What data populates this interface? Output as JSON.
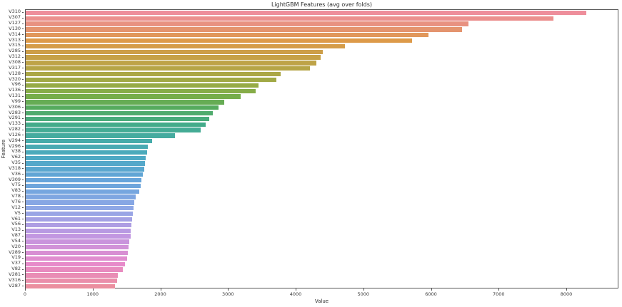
{
  "chart_data": {
    "type": "bar",
    "orientation": "horizontal",
    "title": "LightGBM Features (avg over folds)",
    "xlabel": "Value",
    "ylabel": "Feature",
    "xlim": [
      0,
      8770
    ],
    "x_ticks": [
      0,
      1000,
      2000,
      3000,
      4000,
      5000,
      6000,
      7000,
      8000
    ],
    "grid": false,
    "legend": "none",
    "categories": [
      "V310",
      "V307",
      "V127",
      "V130",
      "V314",
      "V313",
      "V315",
      "V285",
      "V312",
      "V308",
      "V317",
      "V128",
      "V320",
      "V96",
      "V136",
      "V131",
      "V99",
      "V306",
      "V283",
      "V291",
      "V133",
      "V282",
      "V126",
      "V294",
      "V296",
      "V38",
      "V62",
      "V35",
      "V318",
      "V36",
      "V309",
      "V75",
      "V83",
      "V78",
      "V76",
      "V12",
      "V5",
      "V61",
      "V56",
      "V13",
      "V87",
      "V54",
      "V20",
      "V289",
      "V19",
      "V37",
      "V82",
      "V281",
      "V316",
      "V287"
    ],
    "values": [
      8285,
      7800,
      6545,
      6450,
      5950,
      5710,
      4720,
      4395,
      4360,
      4300,
      4200,
      3770,
      3700,
      3440,
      3400,
      3180,
      2930,
      2845,
      2770,
      2715,
      2655,
      2585,
      2205,
      1870,
      1805,
      1795,
      1770,
      1762,
      1752,
      1734,
      1713,
      1700,
      1681,
      1629,
      1604,
      1594,
      1586,
      1569,
      1562,
      1555,
      1548,
      1527,
      1520,
      1509,
      1500,
      1467,
      1432,
      1360,
      1350,
      1320
    ],
    "palette_anchors": [
      {
        "index": 0,
        "color": "#ee8e9b"
      },
      {
        "index": 2,
        "color": "#e89180"
      },
      {
        "index": 5,
        "color": "#dd9a49"
      },
      {
        "index": 10,
        "color": "#b6a546"
      },
      {
        "index": 13,
        "color": "#96ab45"
      },
      {
        "index": 15,
        "color": "#76ad4a"
      },
      {
        "index": 17,
        "color": "#56ab5e"
      },
      {
        "index": 20,
        "color": "#43ab8a"
      },
      {
        "index": 23,
        "color": "#46abaa"
      },
      {
        "index": 26,
        "color": "#4ea9c4"
      },
      {
        "index": 30,
        "color": "#66a4da"
      },
      {
        "index": 35,
        "color": "#8fa8e6"
      },
      {
        "index": 40,
        "color": "#c297e1"
      },
      {
        "index": 45,
        "color": "#e78aca"
      },
      {
        "index": 49,
        "color": "#eb8f9f"
      }
    ],
    "spine_color": "#565656"
  }
}
